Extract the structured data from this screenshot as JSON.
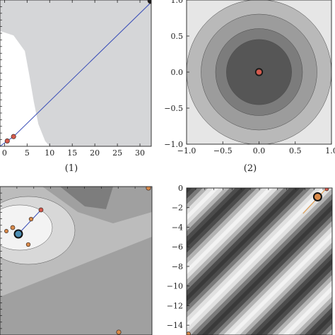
{
  "chart_data": [
    {
      "id": "p1",
      "type": "contour",
      "caption": "(1)",
      "xlim": [
        -1,
        32.5
      ],
      "ylim": [
        0,
        33
      ],
      "x_ticks": [
        0,
        5,
        10,
        15,
        20,
        25,
        30
      ],
      "x_tick_labels": [
        "0",
        "5",
        "10",
        "15",
        "20",
        "25",
        "30"
      ],
      "y_ticks": [],
      "y_tick_labels": [],
      "region_boundary": [
        [
          -1,
          26
        ],
        [
          2,
          25
        ],
        [
          4.5,
          21.5
        ],
        [
          5.5,
          16
        ],
        [
          6.5,
          10
        ],
        [
          7.5,
          5
        ],
        [
          9,
          1.2
        ],
        [
          10,
          0
        ]
      ],
      "region_color": "#d5d6d8",
      "unbounded_region_color": "#ffffff",
      "path": [
        [
          -1,
          0
        ],
        [
          0.6,
          1.2
        ],
        [
          2,
          2.2
        ],
        [
          33,
          33
        ]
      ],
      "path_points": [
        [
          0.6,
          1.2
        ],
        [
          2,
          2.2
        ]
      ],
      "path_color": "#3b4fb8",
      "point_color": "#d65a4e"
    },
    {
      "id": "p2",
      "type": "contour",
      "caption": "(2)",
      "xlim": [
        -1,
        1
      ],
      "ylim": [
        -1,
        1
      ],
      "x_ticks": [
        -1.0,
        -0.5,
        0.0,
        0.5,
        1.0
      ],
      "x_tick_labels": [
        "−1.0",
        "−0.5",
        "0.0",
        "0.5",
        "1.0"
      ],
      "y_ticks": [
        -1.0,
        -0.5,
        0.0,
        0.5,
        1.0
      ],
      "y_tick_labels": [
        "−1.0",
        "−0.5",
        "0.0",
        "0.5",
        "1.0"
      ],
      "contour_radii": [
        1.5,
        1.0,
        0.8,
        0.6,
        0.45
      ],
      "contour_colors": [
        "#e6e6e6",
        "#b9b9b9",
        "#9c9c9c",
        "#7c7c7c",
        "#565656"
      ],
      "minimum": [
        0,
        0
      ],
      "point_color": "#d65a4e"
    },
    {
      "id": "p3",
      "type": "contour",
      "caption": "",
      "x_ticks": [],
      "y_ticks": [],
      "region_colors": [
        "#7d7d7d",
        "#a0a0a0",
        "#bcbcbc",
        "#d8d8d8",
        "#f3f3f3"
      ],
      "point_color": "#d65a4e"
    },
    {
      "id": "p4",
      "type": "contour",
      "caption": "",
      "xlim": [
        -15,
        1
      ],
      "ylim": [
        -15,
        0
      ],
      "x_ticks": [],
      "x_tick_labels": [],
      "y_ticks": [
        0,
        -2,
        -4,
        -6,
        -8,
        -10,
        -12,
        -14
      ],
      "y_tick_labels": [
        "0",
        "−2",
        "−4",
        "−6",
        "−8",
        "−10",
        "−12",
        "−14"
      ],
      "stripe_period": 4.2,
      "stripe_dark": "#3a3a3a",
      "stripe_light": "#f2f2f2",
      "point_color": "#d65a4e",
      "path_color": "#e0a25a"
    }
  ]
}
